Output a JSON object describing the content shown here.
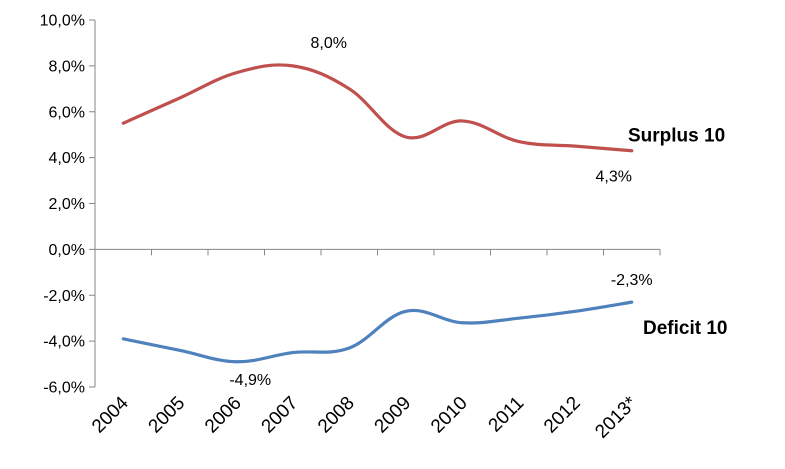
{
  "chart_data": {
    "type": "line",
    "title": "",
    "xlabel": "",
    "ylabel": "",
    "categories": [
      "2004",
      "2005",
      "2006",
      "2007",
      "2008",
      "2009",
      "2010",
      "2011",
      "2012",
      "2013*"
    ],
    "ylim": [
      -6,
      10
    ],
    "y_ticks": [
      {
        "value": 10,
        "label": "10,0%"
      },
      {
        "value": 8,
        "label": "8,0%"
      },
      {
        "value": 6,
        "label": "6,0%"
      },
      {
        "value": 4,
        "label": "4,0%"
      },
      {
        "value": 2,
        "label": "2,0%"
      },
      {
        "value": 0,
        "label": "0,0%"
      },
      {
        "value": -2,
        "label": "-2,0%"
      },
      {
        "value": -4,
        "label": "-4,0%"
      },
      {
        "value": -6,
        "label": "-6,0%"
      }
    ],
    "grid": false,
    "legend": "none",
    "series": [
      {
        "name": "Surplus 10",
        "color": "#C0504D",
        "values": [
          5.5,
          6.6,
          7.7,
          8.0,
          7.0,
          4.9,
          5.6,
          4.7,
          4.5,
          4.3
        ]
      },
      {
        "name": "Deficit 10",
        "color": "#4F81BD",
        "values": [
          -3.9,
          -4.4,
          -4.9,
          -4.5,
          -4.3,
          -2.7,
          -3.2,
          -3.0,
          -2.7,
          -2.3
        ]
      }
    ],
    "annotations": [
      {
        "series": 0,
        "index": 3,
        "text": "8,0%"
      },
      {
        "series": 0,
        "index": 9,
        "text": "4,3%"
      },
      {
        "series": 1,
        "index": 2,
        "text": "-4,9%"
      },
      {
        "series": 1,
        "index": 9,
        "text": "-2,3%"
      }
    ]
  }
}
